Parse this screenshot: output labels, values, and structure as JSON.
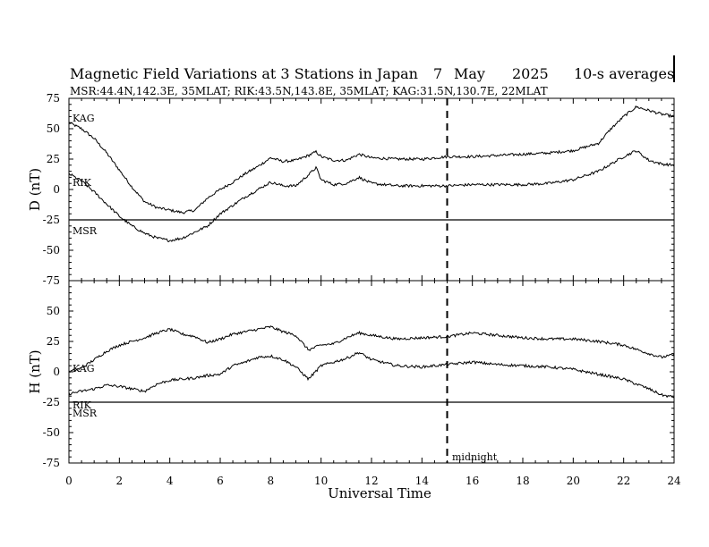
{
  "header": {
    "title": "Magnetic Field Variations at 3 Stations in Japan",
    "day": "7",
    "month": "May",
    "year": "2025",
    "averaging": "10-s averages",
    "stations": "MSR:44.4N,142.3E, 35MLAT;  RIK:43.5N,143.8E, 35MLAT;  KAG:31.5N,130.7E, 22MLAT"
  },
  "marker": {
    "label": "midnight",
    "x": 15
  },
  "chart_data": [
    {
      "type": "line",
      "panel": "D",
      "ylabel": "D (nT)",
      "xlim": [
        0,
        24
      ],
      "ylim": [
        -75,
        75
      ],
      "yticks": [
        75,
        50,
        25,
        0,
        -25,
        -50,
        -75
      ],
      "yticklabels": [
        "75",
        "50",
        "25",
        "0",
        "-25",
        "-50",
        "-75"
      ],
      "series": [
        {
          "name": "KAG",
          "color": "#000000",
          "x": [
            0,
            0.5,
            1,
            1.5,
            2,
            2.5,
            3,
            3.5,
            4,
            4.5,
            5,
            5.5,
            6,
            6.5,
            7,
            7.5,
            8,
            8.5,
            9,
            9.5,
            9.8,
            10,
            10.5,
            11,
            11.5,
            12,
            13,
            14,
            15,
            16,
            17,
            18,
            19,
            20,
            21,
            21.5,
            22,
            22.5,
            23,
            23.5,
            24
          ],
          "y": [
            55,
            50,
            42,
            30,
            16,
            2,
            -10,
            -15,
            -17,
            -19,
            -17,
            -7,
            0,
            6,
            13,
            19,
            26,
            23,
            24,
            28,
            31,
            27,
            24,
            24,
            29,
            26,
            25,
            25,
            27,
            27,
            28,
            29,
            30,
            32,
            38,
            50,
            60,
            68,
            65,
            62,
            60
          ]
        },
        {
          "name": "RIK",
          "color": "#000000",
          "x": [
            0,
            0.5,
            1,
            1.5,
            2,
            2.5,
            3,
            3.5,
            4,
            4.5,
            5,
            5.5,
            6,
            6.5,
            7,
            7.5,
            8,
            8.5,
            9,
            9.5,
            9.8,
            10,
            10.5,
            11,
            11.5,
            12,
            13,
            14,
            15,
            16,
            17,
            18,
            19,
            20,
            21,
            21.5,
            22,
            22.5,
            23,
            23.5,
            24
          ],
          "y": [
            13,
            7,
            -2,
            -12,
            -22,
            -30,
            -36,
            -40,
            -42,
            -40,
            -35,
            -30,
            -20,
            -13,
            -6,
            0,
            6,
            3,
            3,
            12,
            18,
            8,
            4,
            5,
            10,
            5,
            3,
            3,
            3,
            4,
            4,
            4,
            5,
            8,
            15,
            21,
            27,
            32,
            24,
            21,
            20
          ]
        },
        {
          "name": "MSR",
          "color": "#000000",
          "x": [
            0,
            24
          ],
          "y": [
            -25,
            -25
          ]
        }
      ]
    },
    {
      "type": "line",
      "panel": "H",
      "ylabel": "H (nT)",
      "xlim": [
        0,
        24
      ],
      "ylim": [
        -75,
        75
      ],
      "yticks": [
        75,
        50,
        25,
        0,
        -25,
        -50,
        -75
      ],
      "yticklabels": [
        "",
        "50",
        "25",
        "0",
        "-25",
        "-50",
        "-75"
      ],
      "series": [
        {
          "name": "KAG",
          "color": "#000000",
          "x": [
            0,
            0.5,
            1,
            1.5,
            2,
            2.5,
            3,
            3.5,
            4,
            4.5,
            5,
            5.5,
            6,
            6.5,
            7,
            7.5,
            8,
            8.5,
            9,
            9.5,
            10,
            10.5,
            11,
            11.5,
            12,
            13,
            14,
            15,
            16,
            17,
            18,
            19,
            20,
            21,
            22,
            23,
            23.5,
            24
          ],
          "y": [
            0,
            3,
            10,
            17,
            22,
            25,
            28,
            32,
            35,
            31,
            29,
            24,
            27,
            31,
            33,
            35,
            37,
            33,
            30,
            18,
            22,
            23,
            28,
            32,
            30,
            27,
            28,
            29,
            32,
            30,
            28,
            27,
            27,
            25,
            22,
            15,
            12,
            14
          ]
        },
        {
          "name": "RIK",
          "color": "#000000",
          "x": [
            0,
            0.5,
            1,
            1.5,
            2,
            2.5,
            3,
            3.5,
            4,
            4.5,
            5,
            5.5,
            6,
            6.5,
            7,
            7.5,
            8,
            8.5,
            9,
            9.5,
            10,
            10.5,
            11,
            11.5,
            12,
            13,
            14,
            15,
            16,
            17,
            18,
            19,
            20,
            21,
            22,
            23,
            23.5,
            24
          ],
          "y": [
            -18,
            -16,
            -14,
            -11,
            -12,
            -14,
            -16,
            -10,
            -7,
            -6,
            -5,
            -3,
            -2,
            5,
            8,
            12,
            13,
            10,
            4,
            -6,
            5,
            8,
            11,
            16,
            10,
            5,
            4,
            6,
            8,
            6,
            5,
            4,
            2,
            -2,
            -6,
            -14,
            -19,
            -21
          ]
        },
        {
          "name": "MSR",
          "color": "#000000",
          "x": [
            0,
            24
          ],
          "y": [
            -25,
            -25
          ]
        }
      ]
    }
  ],
  "xaxis": {
    "label": "Universal Time",
    "ticks": [
      0,
      2,
      4,
      6,
      8,
      10,
      12,
      14,
      16,
      18,
      20,
      22,
      24
    ],
    "ticklabels": [
      "0",
      "2",
      "4",
      "6",
      "8",
      "10",
      "12",
      "14",
      "16",
      "18",
      "20",
      "22",
      "24"
    ]
  },
  "labels": {
    "d_kag": "KAG",
    "d_rik": "RIK",
    "d_msr": "MSR",
    "h_kag": "KAG",
    "h_rik": "RIK",
    "h_msr": "MSR"
  }
}
